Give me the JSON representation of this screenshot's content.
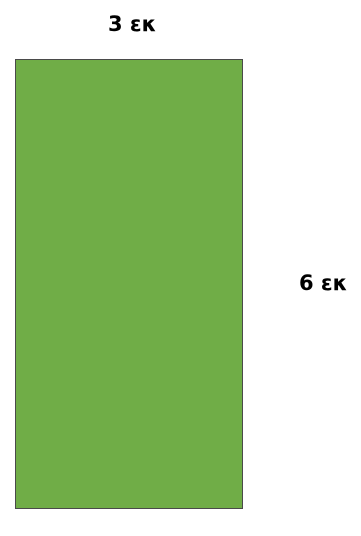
{
  "diagram": {
    "width_label": "3 εκ",
    "height_label": "6 εκ",
    "rectangle_color": "#70ad47"
  }
}
